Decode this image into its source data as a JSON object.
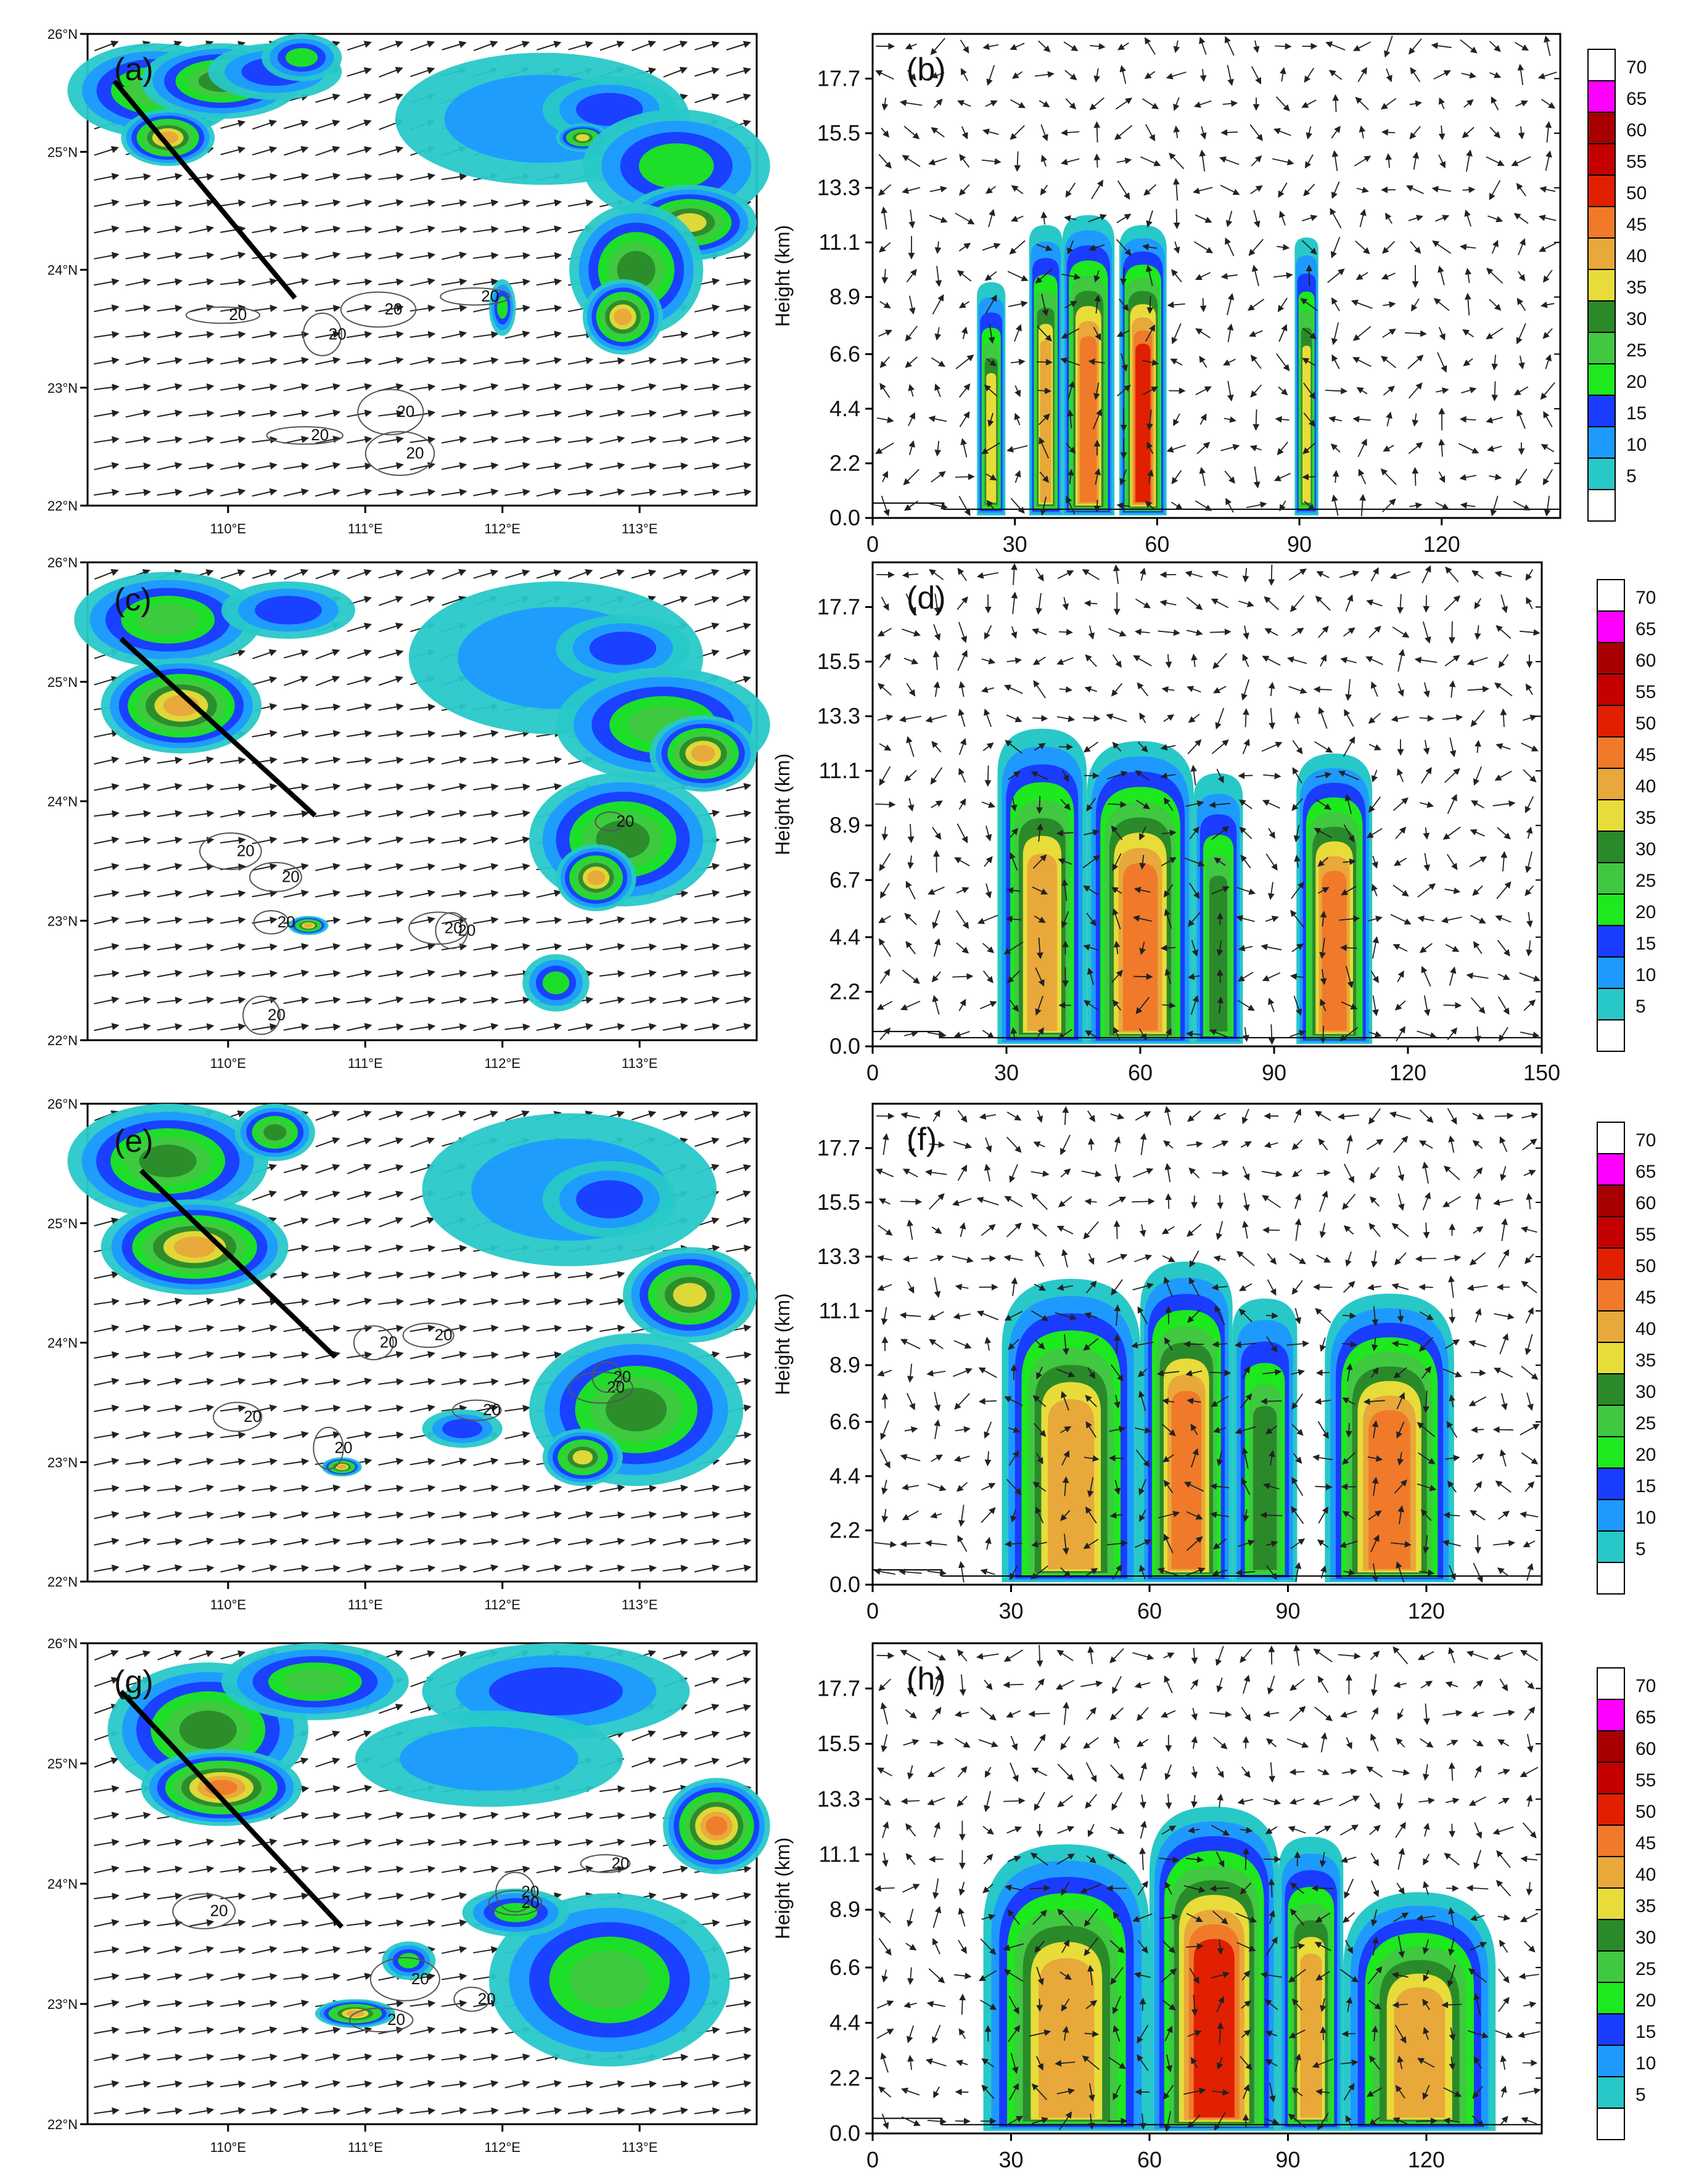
{
  "figure": {
    "colors": {
      "arrow": "#222222",
      "contour": "#555555",
      "cross_section_line": "#000000"
    },
    "colorbar": {
      "levels": [
        "70",
        "65",
        "60",
        "55",
        "50",
        "45",
        "40",
        "35",
        "30",
        "25",
        "20",
        "15",
        "10",
        "5"
      ],
      "colors": [
        "#ffffff",
        "#ff00ff",
        "#a80000",
        "#c40000",
        "#e02000",
        "#f07a2a",
        "#e8a83a",
        "#e8dc3a",
        "#2a8a2a",
        "#40c840",
        "#1ee81e",
        "#1a3cff",
        "#1e9aff",
        "#28c8c8",
        "#ffffff"
      ]
    },
    "map_axes": {
      "lat_labels": [
        "26°N",
        "25°N",
        "24°N",
        "23°N",
        "22°N"
      ],
      "lon_labels": [
        "110°E",
        "111°E",
        "112°E",
        "113°E"
      ],
      "contour_label": "20"
    },
    "panels": [
      {
        "left_label": "(a)",
        "right_label": "(b)"
      },
      {
        "left_label": "(c)",
        "right_label": "(d)"
      },
      {
        "left_label": "(e)",
        "right_label": "(f)"
      },
      {
        "left_label": "(g)",
        "right_label": "(h)"
      }
    ]
  },
  "chart_data": [
    {
      "type": "heatmap",
      "panel": "(b)",
      "ylabel": "Height (km)",
      "yticks": [
        "17.7",
        "15.5",
        "13.3",
        "11.1",
        "8.9",
        "6.6",
        "4.4",
        "2.2",
        "0.0"
      ],
      "xticks": [
        "0",
        "30",
        "60",
        "90",
        "120"
      ],
      "xlim": [
        0,
        145
      ],
      "ylim": [
        0,
        19.5
      ],
      "cells": [
        {
          "x": [
            22,
            28
          ],
          "top": 9.5,
          "core": 35
        },
        {
          "x": [
            33,
            40
          ],
          "top": 11.8,
          "core": 40
        },
        {
          "x": [
            40,
            51
          ],
          "top": 12.2,
          "core": 45
        },
        {
          "x": [
            52,
            62
          ],
          "top": 11.8,
          "core": 50
        },
        {
          "x": [
            89,
            94
          ],
          "top": 11.3,
          "core": 35
        }
      ]
    },
    {
      "type": "heatmap",
      "panel": "(d)",
      "ylabel": "Height (km)",
      "yticks": [
        "17.7",
        "15.5",
        "13.3",
        "11.1",
        "8.9",
        "6.7",
        "4.4",
        "2.2",
        "0.0"
      ],
      "xticks": [
        "0",
        "30",
        "60",
        "90",
        "120",
        "150"
      ],
      "xlim": [
        0,
        150
      ],
      "ylim": [
        0,
        19.5
      ],
      "cells": [
        {
          "x": [
            28,
            48
          ],
          "top": 12.8,
          "core": 40
        },
        {
          "x": [
            48,
            72
          ],
          "top": 12.3,
          "core": 45
        },
        {
          "x": [
            72,
            83
          ],
          "top": 11.0,
          "core": 30
        },
        {
          "x": [
            95,
            112
          ],
          "top": 11.8,
          "core": 45
        }
      ]
    },
    {
      "type": "heatmap",
      "panel": "(f)",
      "ylabel": "Height (km)",
      "yticks": [
        "17.7",
        "15.5",
        "13.3",
        "11.1",
        "8.9",
        "6.6",
        "4.4",
        "2.2",
        "0.0"
      ],
      "xticks": [
        "0",
        "30",
        "60",
        "90",
        "120"
      ],
      "xlim": [
        0,
        145
      ],
      "ylim": [
        0,
        19.5
      ],
      "cells": [
        {
          "x": [
            28,
            58
          ],
          "top": 12.4,
          "core": 40
        },
        {
          "x": [
            58,
            78
          ],
          "top": 13.1,
          "core": 45
        },
        {
          "x": [
            78,
            92
          ],
          "top": 11.6,
          "core": 30
        },
        {
          "x": [
            98,
            126
          ],
          "top": 11.8,
          "core": 45
        }
      ]
    },
    {
      "type": "heatmap",
      "panel": "(h)",
      "ylabel": "Height (km)",
      "yticks": [
        "17.7",
        "15.5",
        "13.3",
        "11.1",
        "8.9",
        "6.6",
        "4.4",
        "2.2",
        "0.0"
      ],
      "xticks": [
        "0",
        "30",
        "60",
        "90",
        "120"
      ],
      "xlim": [
        0,
        145
      ],
      "ylim": [
        0,
        19.5
      ],
      "cells": [
        {
          "x": [
            24,
            60
          ],
          "top": 11.5,
          "core": 40
        },
        {
          "x": [
            60,
            88
          ],
          "top": 13.0,
          "core": 50
        },
        {
          "x": [
            88,
            102
          ],
          "top": 11.8,
          "core": 40
        },
        {
          "x": [
            102,
            135
          ],
          "top": 9.6,
          "core": 40
        }
      ]
    }
  ]
}
